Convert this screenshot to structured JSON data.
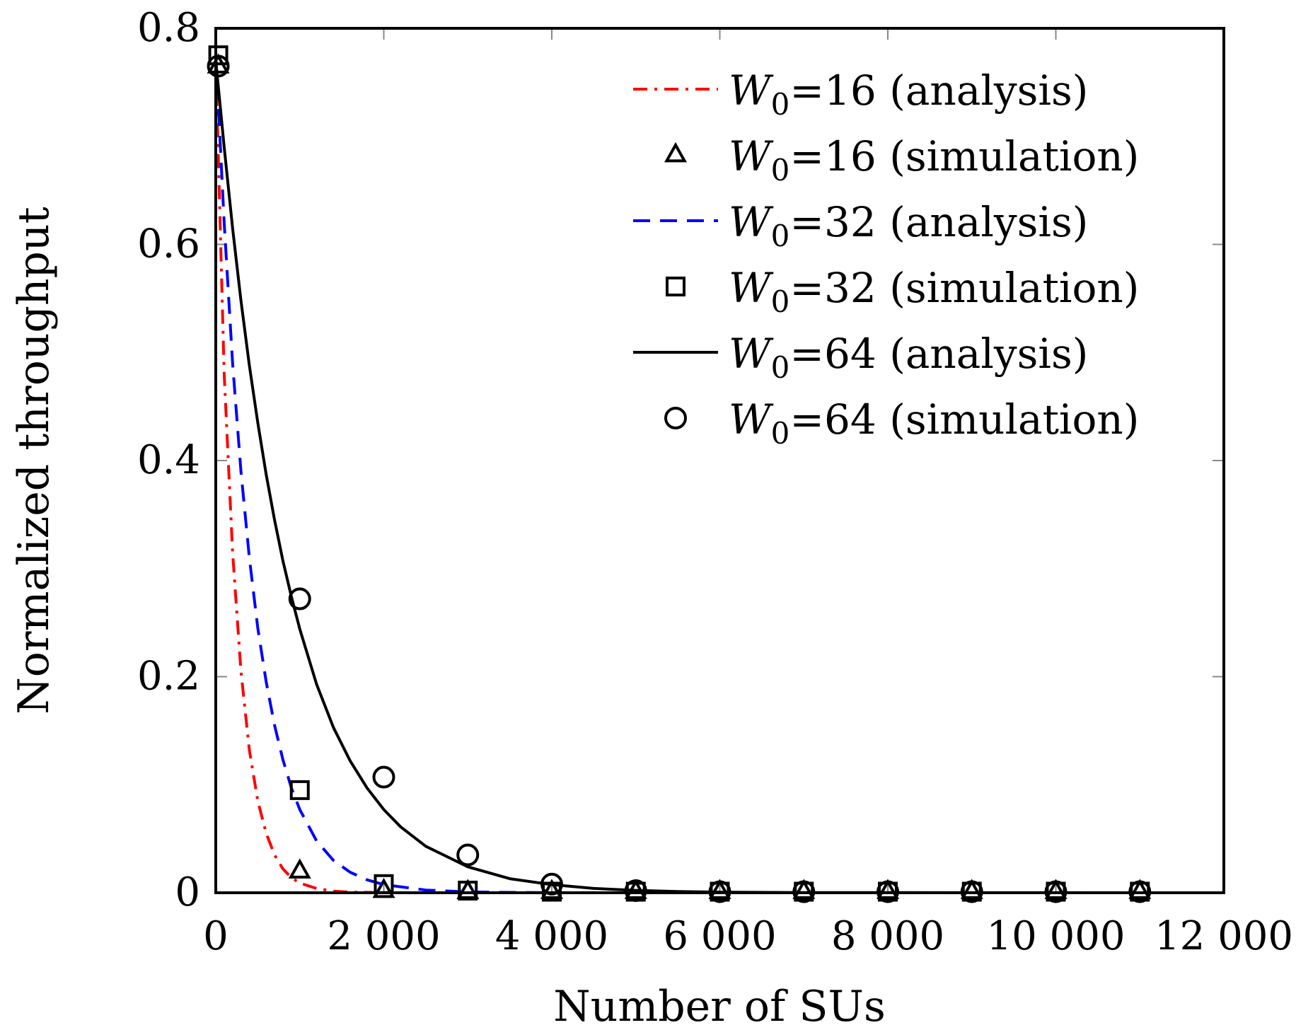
{
  "chart_data": {
    "type": "line",
    "title": "",
    "xlabel": "Number of SUs",
    "ylabel": "Normalized throughput",
    "xlim": [
      0,
      12000
    ],
    "ylim": [
      0,
      0.8
    ],
    "xticks": [
      0,
      2000,
      4000,
      6000,
      8000,
      10000,
      12000
    ],
    "xtick_labels": [
      "0",
      "2 000",
      "4 000",
      "6 000",
      "8 000",
      "10 000",
      "12 000"
    ],
    "yticks": [
      0,
      0.2,
      0.4,
      0.6,
      0.8
    ],
    "ytick_labels": [
      "0",
      "0.2",
      "0.4",
      "0.6",
      "0.8"
    ],
    "grid": false,
    "legend_position": "top-right",
    "series": [
      {
        "name": "W0=16 (analysis)",
        "legend_prefix": "W",
        "legend_sub": "0",
        "legend_suffix": "=16 (analysis)",
        "kind": "line",
        "style": "dashdot",
        "color": "#ff0000",
        "x": [
          0,
          100,
          200,
          300,
          400,
          500,
          600,
          700,
          800,
          900,
          1000,
          1200,
          1400,
          1600,
          2000,
          3000,
          4000,
          6000,
          8000,
          12000
        ],
        "y": [
          0.77,
          0.48,
          0.315,
          0.205,
          0.132,
          0.085,
          0.055,
          0.035,
          0.022,
          0.014,
          0.009,
          0.004,
          0.0015,
          0.0006,
          0.0001,
          0,
          0,
          0,
          0,
          0
        ]
      },
      {
        "name": "W0=16 (simulation)",
        "legend_prefix": "W",
        "legend_sub": "0",
        "legend_suffix": "=16 (simulation)",
        "kind": "marker",
        "marker": "triangle",
        "color": "#000000",
        "x": [
          30,
          1000,
          2000,
          3000,
          4000,
          5000,
          6000,
          7000,
          8000,
          9000,
          10000,
          11000
        ],
        "y": [
          0.765,
          0.02,
          0.002,
          0.001,
          0.001,
          0.001,
          0.001,
          0.001,
          0.001,
          0.001,
          0.001,
          0.001
        ]
      },
      {
        "name": "W0=32 (analysis)",
        "legend_prefix": "W",
        "legend_sub": "0",
        "legend_suffix": "=32 (analysis)",
        "kind": "line",
        "style": "dashed",
        "color": "#0000ff",
        "x": [
          0,
          100,
          200,
          300,
          400,
          500,
          600,
          700,
          800,
          900,
          1000,
          1200,
          1400,
          1600,
          1800,
          2000,
          2500,
          3000,
          3500,
          4000,
          5000,
          6000,
          8000,
          12000
        ],
        "y": [
          0.775,
          0.62,
          0.49,
          0.39,
          0.31,
          0.245,
          0.195,
          0.155,
          0.123,
          0.097,
          0.077,
          0.048,
          0.03,
          0.019,
          0.012,
          0.0075,
          0.0025,
          0.0008,
          0.0003,
          0.0001,
          0,
          0,
          0,
          0
        ]
      },
      {
        "name": "W0=32 (simulation)",
        "legend_prefix": "W",
        "legend_sub": "0",
        "legend_suffix": "=32 (simulation)",
        "kind": "marker",
        "marker": "square",
        "color": "#000000",
        "x": [
          30,
          1000,
          2000,
          3000,
          4000,
          5000,
          6000,
          7000,
          8000,
          9000,
          10000,
          11000
        ],
        "y": [
          0.775,
          0.095,
          0.008,
          0.002,
          0.001,
          0.001,
          0.001,
          0.001,
          0.001,
          0.001,
          0.001,
          0.001
        ]
      },
      {
        "name": "W0=64 (analysis)",
        "legend_prefix": "W",
        "legend_sub": "0",
        "legend_suffix": "=64 (analysis)",
        "kind": "line",
        "style": "solid",
        "color": "#000000",
        "x": [
          0,
          100,
          200,
          300,
          400,
          500,
          600,
          700,
          800,
          900,
          1000,
          1200,
          1400,
          1600,
          1800,
          2000,
          2200,
          2500,
          3000,
          3500,
          4000,
          4500,
          5000,
          5500,
          6000,
          7000,
          8000,
          12000
        ],
        "y": [
          0.77,
          0.69,
          0.615,
          0.548,
          0.488,
          0.435,
          0.387,
          0.345,
          0.307,
          0.274,
          0.244,
          0.193,
          0.153,
          0.122,
          0.097,
          0.077,
          0.061,
          0.043,
          0.024,
          0.013,
          0.0075,
          0.004,
          0.0022,
          0.0012,
          0.0006,
          0.0002,
          0.0001,
          0
        ]
      },
      {
        "name": "W0=64 (simulation)",
        "legend_prefix": "W",
        "legend_sub": "0",
        "legend_suffix": "=64 (simulation)",
        "kind": "marker",
        "marker": "circle",
        "color": "#000000",
        "x": [
          30,
          1000,
          2000,
          3000,
          4000,
          5000,
          6000,
          7000,
          8000,
          9000,
          10000,
          11000
        ],
        "y": [
          0.765,
          0.272,
          0.107,
          0.035,
          0.008,
          0.002,
          0.001,
          0.001,
          0.001,
          0.001,
          0.001,
          0.001
        ]
      }
    ]
  }
}
